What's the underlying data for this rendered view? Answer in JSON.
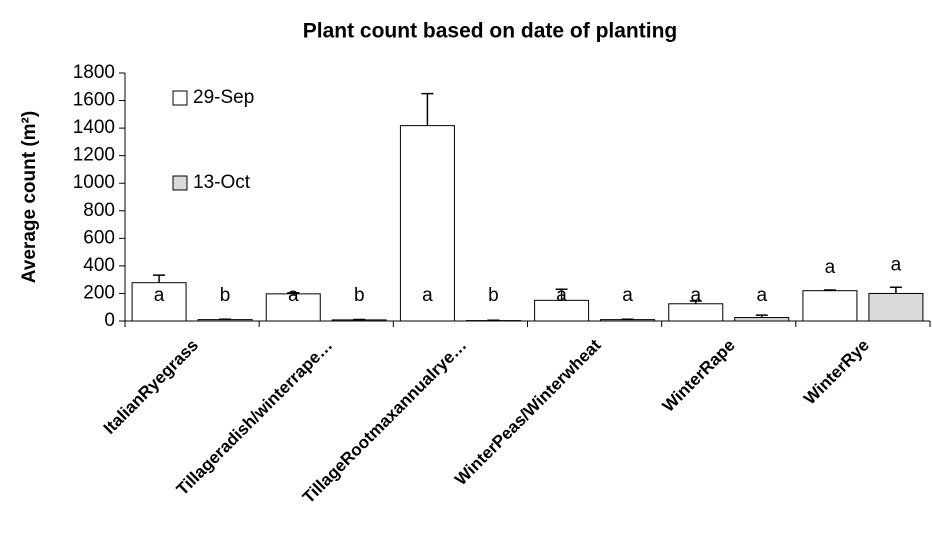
{
  "chart_data": {
    "type": "bar",
    "title": "Plant count based on  date of planting",
    "y_label": "Average count (m²)",
    "categories": [
      "ItalianRyegrass",
      "Tillageradish/winterrape…",
      "TillageRootmaxannualrye…",
      "WinterPeas/Winterwheat",
      "WinterRape",
      "WinterRye"
    ],
    "series": [
      {
        "name": "29-Sep",
        "color": "#ffffff",
        "values": [
          278,
          197,
          1418,
          150,
          125,
          220
        ],
        "errors": [
          55,
          8,
          232,
          80,
          20,
          5
        ],
        "letters": [
          "a",
          "a",
          "a",
          "a",
          "a",
          "a"
        ]
      },
      {
        "name": "13-Oct",
        "color": "#d9d9d9",
        "values": [
          10,
          8,
          3,
          10,
          25,
          200
        ],
        "errors": [
          3,
          3,
          2,
          3,
          18,
          45
        ],
        "letters": [
          "b",
          "b",
          "b",
          "a",
          "a",
          "a"
        ]
      }
    ],
    "ylim": [
      0,
      1800
    ],
    "yticks": [
      0,
      200,
      400,
      600,
      800,
      1000,
      1200,
      1400,
      1600,
      1800
    ],
    "grid": false,
    "legend": "upper left"
  }
}
